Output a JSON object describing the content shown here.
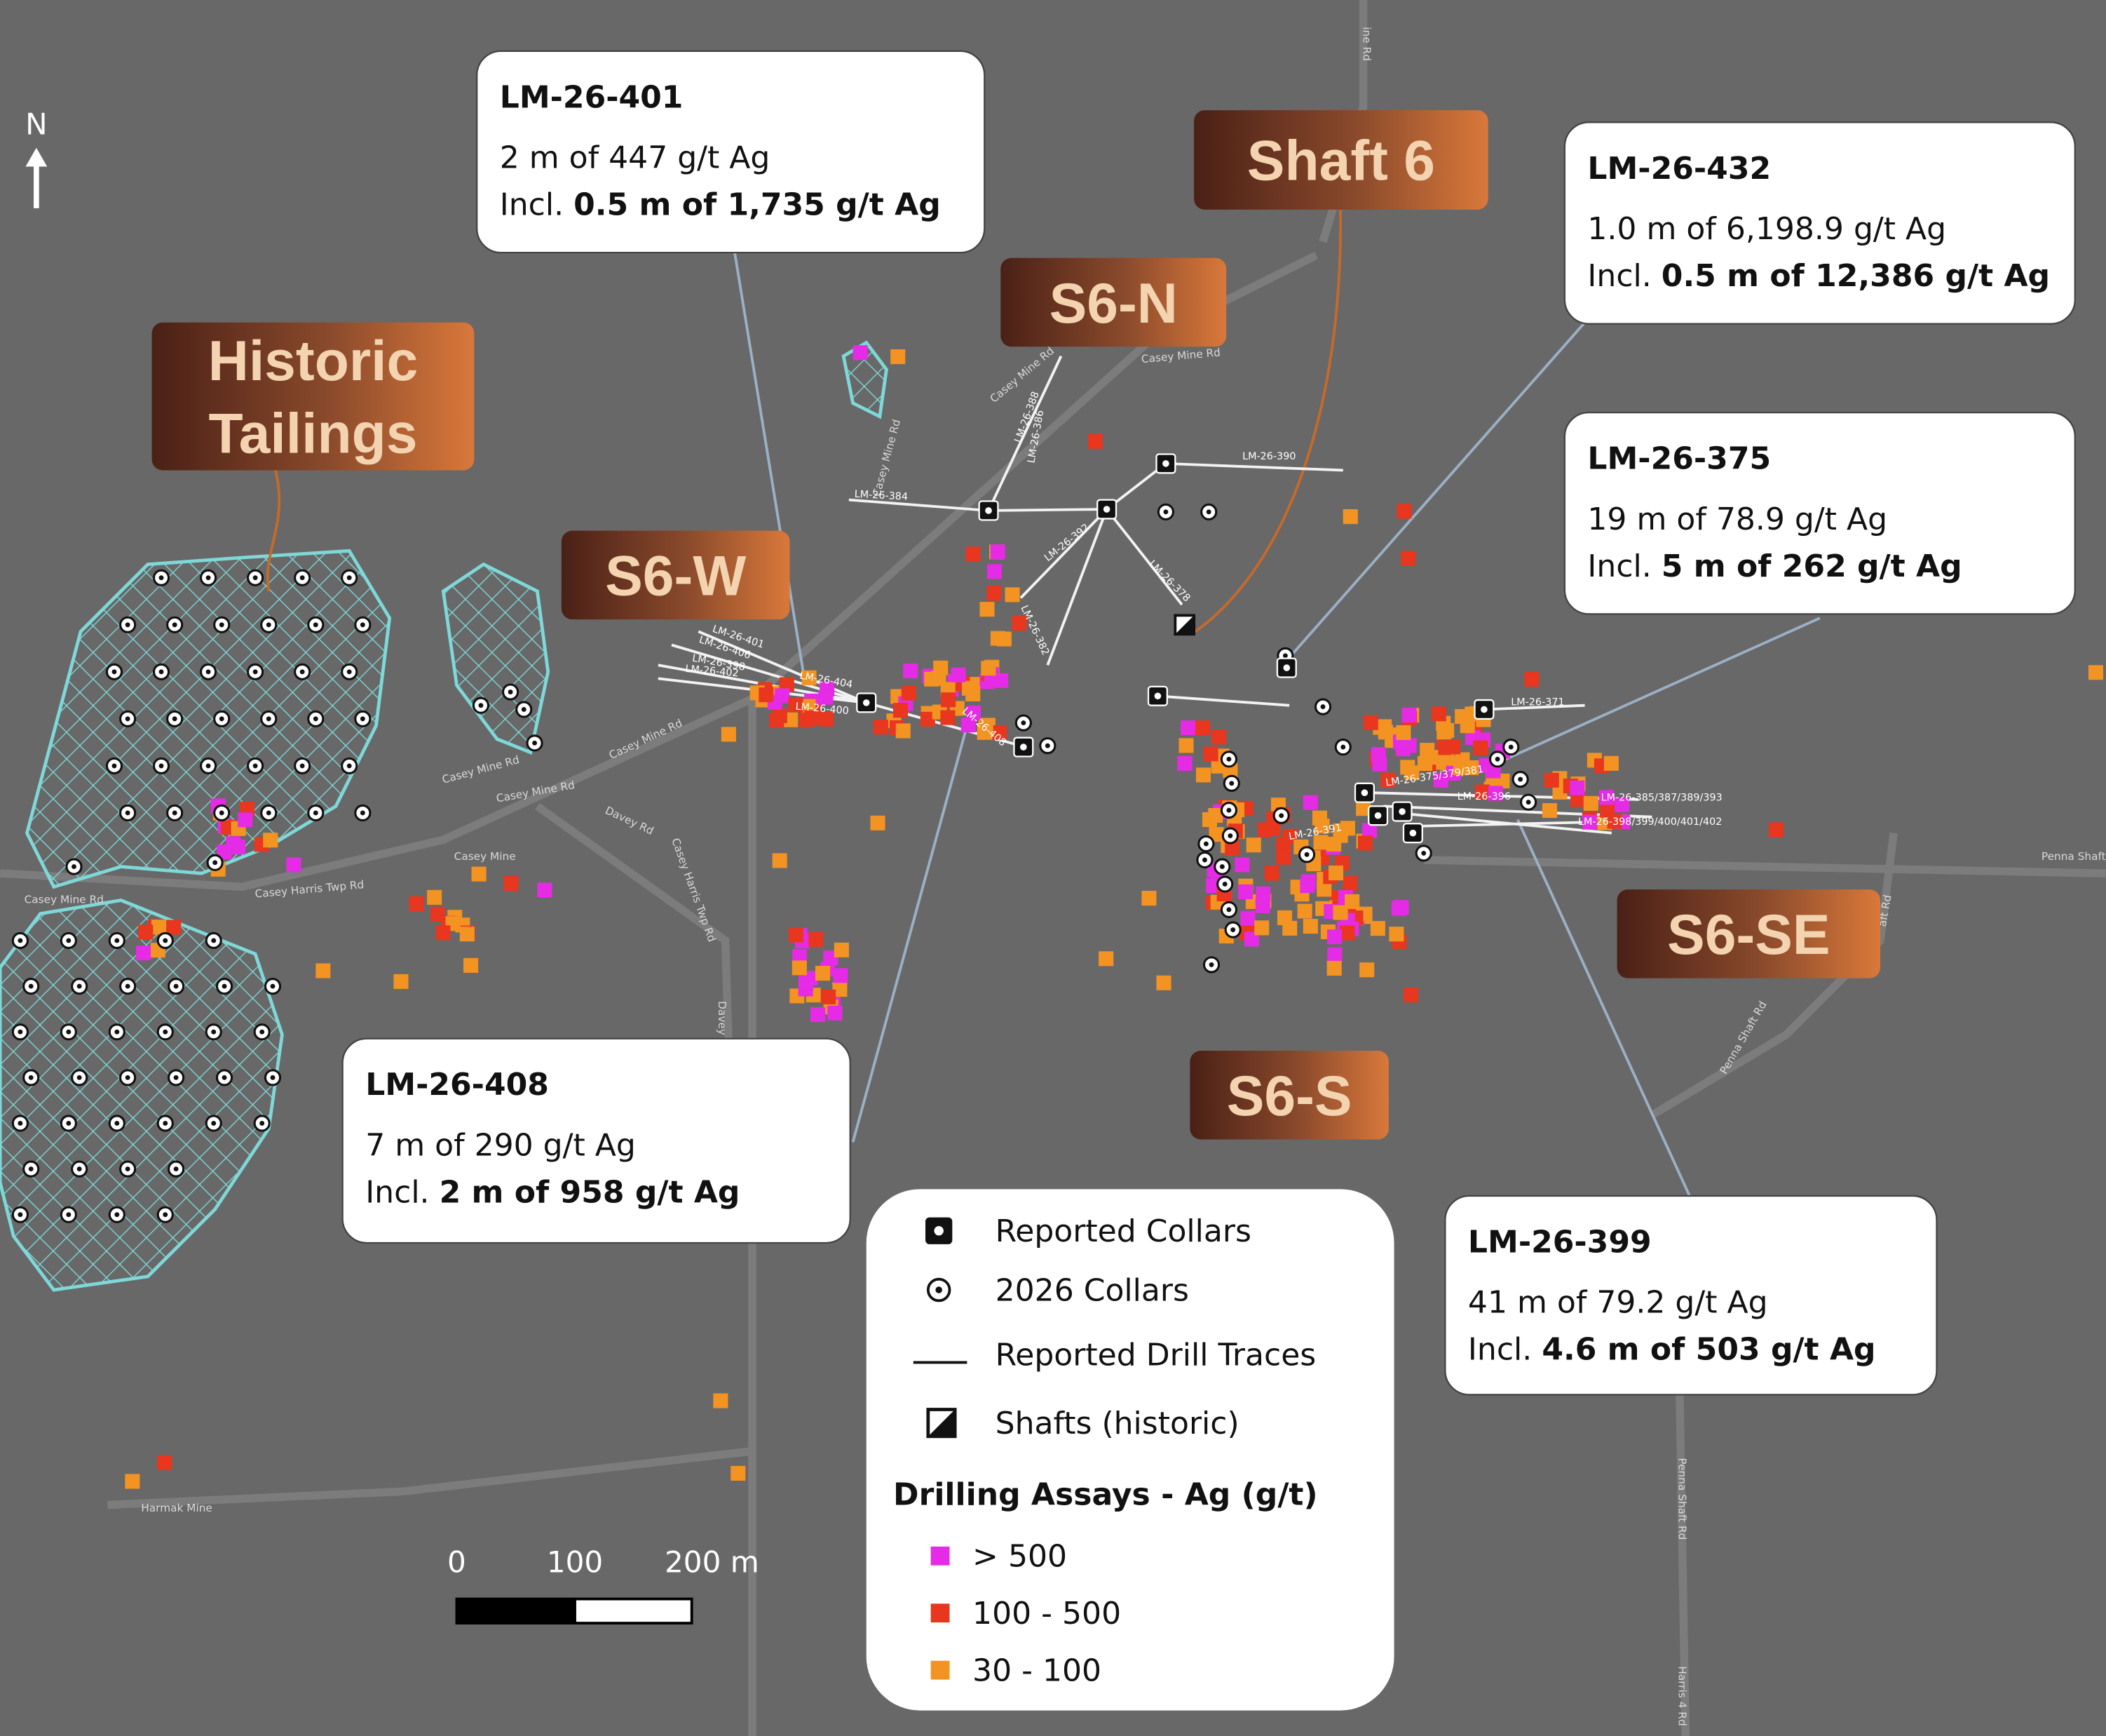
{
  "north": "N",
  "zones": [
    {
      "lines": [
        "Historic",
        "Tailings"
      ]
    },
    {
      "lines": [
        "Shaft 6"
      ]
    },
    {
      "lines": [
        "S6-N"
      ]
    },
    {
      "lines": [
        "S6-W"
      ]
    },
    {
      "lines": [
        "S6-SE"
      ]
    },
    {
      "lines": [
        "S6-S"
      ]
    }
  ],
  "callouts": [
    {
      "title": "LM-26-401",
      "result": "2 m of 447 g/t Ag",
      "incl": "Incl.",
      "incl_result": "0.5 m of 1,735 g/t Ag"
    },
    {
      "title": "LM-26-432",
      "result": "1.0 m of 6,198.9 g/t Ag",
      "incl": "Incl.",
      "incl_result": "0.5 m of 12,386 g/t Ag"
    },
    {
      "title": "LM-26-375",
      "result": "19 m of 78.9 g/t Ag",
      "incl": "Incl.",
      "incl_result": "5 m of 262 g/t Ag"
    },
    {
      "title": "LM-26-408",
      "result": "7 m of 290 g/t Ag",
      "incl": "Incl.",
      "incl_result": "2 m of 958 g/t Ag"
    },
    {
      "title": "LM-26-399",
      "result": "41 m of 79.2 g/t Ag",
      "incl": "Incl.",
      "incl_result": "4.6 m of 503 g/t Ag"
    }
  ],
  "legend": {
    "items": [
      "Reported Collars",
      "2026 Collars",
      "Reported Drill Traces",
      "Shafts (historic)"
    ],
    "assay_title": "Drilling Assays - Ag (g/t)",
    "classes": [
      {
        "label": "> 500",
        "color": "#e52be5"
      },
      {
        "label": "100 - 500",
        "color": "#e8361f"
      },
      {
        "label": "30 - 100",
        "color": "#f39322"
      }
    ]
  },
  "scale_bar": [
    "0",
    "100",
    "200 m"
  ],
  "roads": [
    "Casey Mine Rd",
    "Casey Mine Rd",
    "Casey Mine Rd",
    "Casey Mine Rd",
    "Casey Mine Rd",
    "Casey Mine Rd",
    "Casey Harris Twp Rd",
    "Casey Harris Twp Rd",
    "Davey Rd",
    "Davey Rd",
    "Penna Shaft Rd",
    "Penna Shaft Rd",
    "Penna Shaft Rd",
    "Harris 4 Rd",
    "Harmak Mine",
    "Casey Mine",
    "ine Rd",
    "aft Rd",
    "Casey Mine Rd"
  ],
  "drill_labels": [
    "LM-26-401",
    "LM-26-406",
    "LM-26-398",
    "LM-26-402",
    "LM-26-404",
    "LM-26-400",
    "LM-26-384",
    "LM-26-388",
    "LM-26-386",
    "LM-26-392",
    "LM-26-382",
    "LM-26-390",
    "LM-26-378",
    "LM-26-408",
    "LM-26-371",
    "LM-26-375/379/381",
    "LM-26-396",
    "LM-26-391",
    "LM-26-385/387/389/393",
    "LM-26-398/399/400/401/402"
  ]
}
